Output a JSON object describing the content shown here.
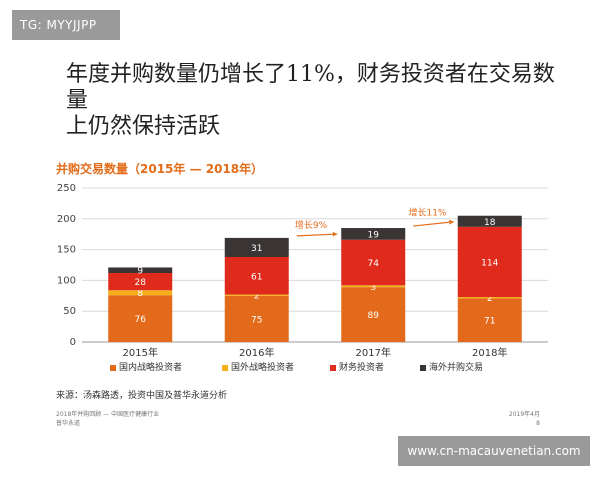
{
  "watermark": {
    "tag": "TG: MYYJJPP",
    "url": "www.cn-macauvenetian.com"
  },
  "headline": {
    "line1": "年度并购数量仍增长了11%，财务投资者在交易数量",
    "line2": "上仍然保持活跃"
  },
  "colors": {
    "domestic": "#e36a1a",
    "foreign": "#f3b01a",
    "financial": "#e02b1c",
    "overseas": "#3a3434",
    "accent": "#e36c1b"
  },
  "chart_data": {
    "type": "bar",
    "stacked": true,
    "title": "并购交易数量（2015年 — 2018年）",
    "categories": [
      "2015年",
      "2016年",
      "2017年",
      "2018年"
    ],
    "ylim": [
      0,
      250
    ],
    "yticks": [
      "0",
      "50",
      "100",
      "150",
      "200",
      "250"
    ],
    "grid": true,
    "legend_position": "bottom",
    "series": [
      {
        "name": "国内战略投资者",
        "color_key": "domestic",
        "values": [
          76,
          75,
          89,
          71
        ]
      },
      {
        "name": "国外战略投资者",
        "color_key": "foreign",
        "values": [
          8,
          2,
          3,
          2
        ]
      },
      {
        "name": "财务投资者",
        "color_key": "financial",
        "values": [
          28,
          61,
          74,
          114
        ]
      },
      {
        "name": "海外并购交易",
        "color_key": "overseas",
        "values": [
          9,
          31,
          19,
          18
        ]
      }
    ],
    "annotations": [
      {
        "text": "增长9%",
        "from_category": 1,
        "to_category": 2
      },
      {
        "text": "增长11%",
        "from_category": 2,
        "to_category": 3
      }
    ]
  },
  "source": "来源：汤森路透，投资中国及普华永道分析",
  "footer": {
    "left_line1": "2018年并购回顾 — 中国医疗健康行业",
    "left_line2": "普华永道",
    "right_line1": "2019年4月",
    "right_line2": "8"
  }
}
